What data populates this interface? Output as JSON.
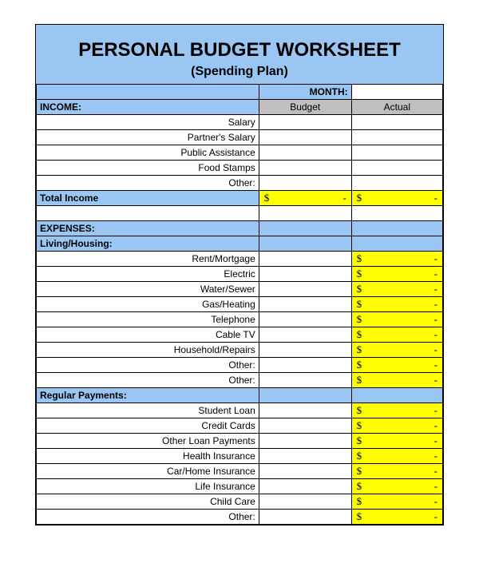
{
  "colors": {
    "header_blue": "#99c6f2",
    "gray": "#bfbfbf",
    "yellow": "#ffff00",
    "border": "#000000",
    "white": "#ffffff"
  },
  "title": "PERSONAL BUDGET WORKSHEET",
  "subtitle": "(Spending Plan)",
  "month_label": "MONTH:",
  "month_value": "",
  "columns": {
    "budget": "Budget",
    "actual": "Actual"
  },
  "income": {
    "header": "INCOME:",
    "items": [
      "Salary",
      "Partner's Salary",
      "Public Assistance",
      "Food Stamps",
      "Other:"
    ],
    "total_label": "Total Income",
    "total_budget": "$                -",
    "total_actual": "$                -"
  },
  "expenses": {
    "header": "EXPENSES:",
    "living": {
      "header": "Living/Housing:",
      "items": [
        {
          "label": "Rent/Mortgage",
          "actual": "$                -"
        },
        {
          "label": "Electric",
          "actual": "$                -"
        },
        {
          "label": "Water/Sewer",
          "actual": "$                -"
        },
        {
          "label": "Gas/Heating",
          "actual": "$                -"
        },
        {
          "label": "Telephone",
          "actual": "$                -"
        },
        {
          "label": "Cable TV",
          "actual": "$                -"
        },
        {
          "label": "Household/Repairs",
          "actual": "$                -"
        },
        {
          "label": "Other:",
          "actual": "$                -"
        },
        {
          "label": "Other:",
          "actual": "$                -"
        }
      ]
    },
    "regular": {
      "header": "Regular Payments:",
      "items": [
        {
          "label": "Student Loan",
          "actual": "$                -"
        },
        {
          "label": "Credit Cards",
          "actual": "$                -"
        },
        {
          "label": "Other Loan Payments",
          "actual": "$                -"
        },
        {
          "label": "Health Insurance",
          "actual": "$                -"
        },
        {
          "label": "Car/Home Insurance",
          "actual": "$                -"
        },
        {
          "label": "Life Insurance",
          "actual": "$                -"
        },
        {
          "label": "Child Care",
          "actual": "$                -"
        },
        {
          "label": "Other:",
          "actual": "$                -"
        }
      ]
    }
  }
}
